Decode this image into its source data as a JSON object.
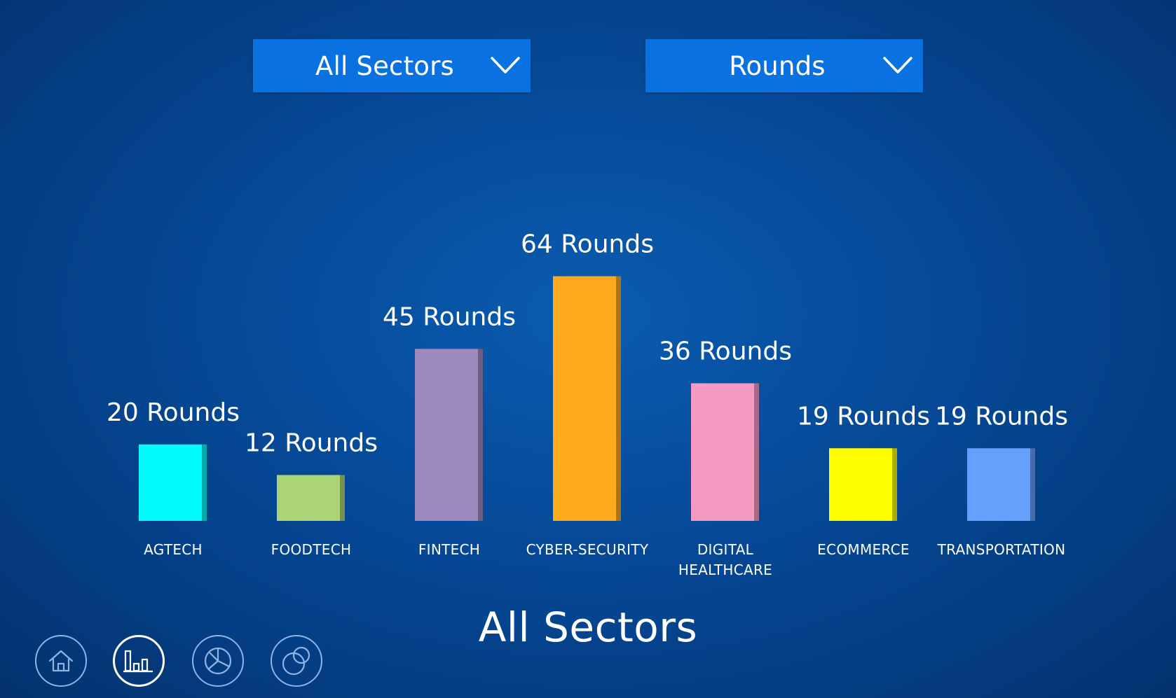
{
  "filters": {
    "sector": {
      "selected": "All Sectors"
    },
    "metric": {
      "selected": "Rounds"
    }
  },
  "chart_data": {
    "type": "bar",
    "title": "All Sectors",
    "categories": [
      "AGTECH",
      "FOODTECH",
      "FINTECH",
      "CYBER-SECURITY",
      "DIGITAL HEALTHCARE",
      "ECOMMERCE",
      "TRANSPORTATION"
    ],
    "values": [
      20,
      12,
      45,
      64,
      36,
      19,
      19
    ],
    "value_labels": [
      "20 Rounds",
      "12 Rounds",
      "45 Rounds",
      "64 Rounds",
      "36 Rounds",
      "19 Rounds",
      "19 Rounds"
    ],
    "colors": [
      "#00fbfb",
      "#abd575",
      "#9f8abf",
      "#ffaa1c",
      "#f59ac3",
      "#fdfd00",
      "#64a0fc"
    ],
    "ylim": [
      0,
      64
    ],
    "grid": false,
    "legend": "none"
  },
  "nav": {
    "items": [
      {
        "icon": "home-icon",
        "active": false
      },
      {
        "icon": "bar-chart-icon",
        "active": true
      },
      {
        "icon": "pie-chart-icon",
        "active": false
      },
      {
        "icon": "bubbles-icon",
        "active": false
      }
    ]
  }
}
